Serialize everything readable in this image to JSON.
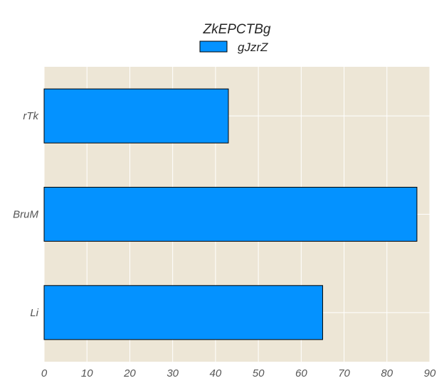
{
  "chart_data": {
    "type": "bar",
    "orientation": "horizontal",
    "title": "ZkEPCTBg",
    "categories": [
      "rTk",
      "BruM",
      "Li"
    ],
    "series": [
      {
        "name": "gJzrZ",
        "values": [
          43,
          87,
          65
        ],
        "color": "#0492ff"
      }
    ],
    "xlim": [
      0,
      90
    ],
    "xticks": [
      0,
      10,
      20,
      30,
      40,
      50,
      60,
      70,
      80,
      90
    ],
    "xlabel": "",
    "ylabel": "",
    "grid": true,
    "legend_position": "top-center",
    "colors": {
      "plot_background": "#ede6d6",
      "grid": "#ffffff",
      "bar_edge": "#000000"
    }
  }
}
